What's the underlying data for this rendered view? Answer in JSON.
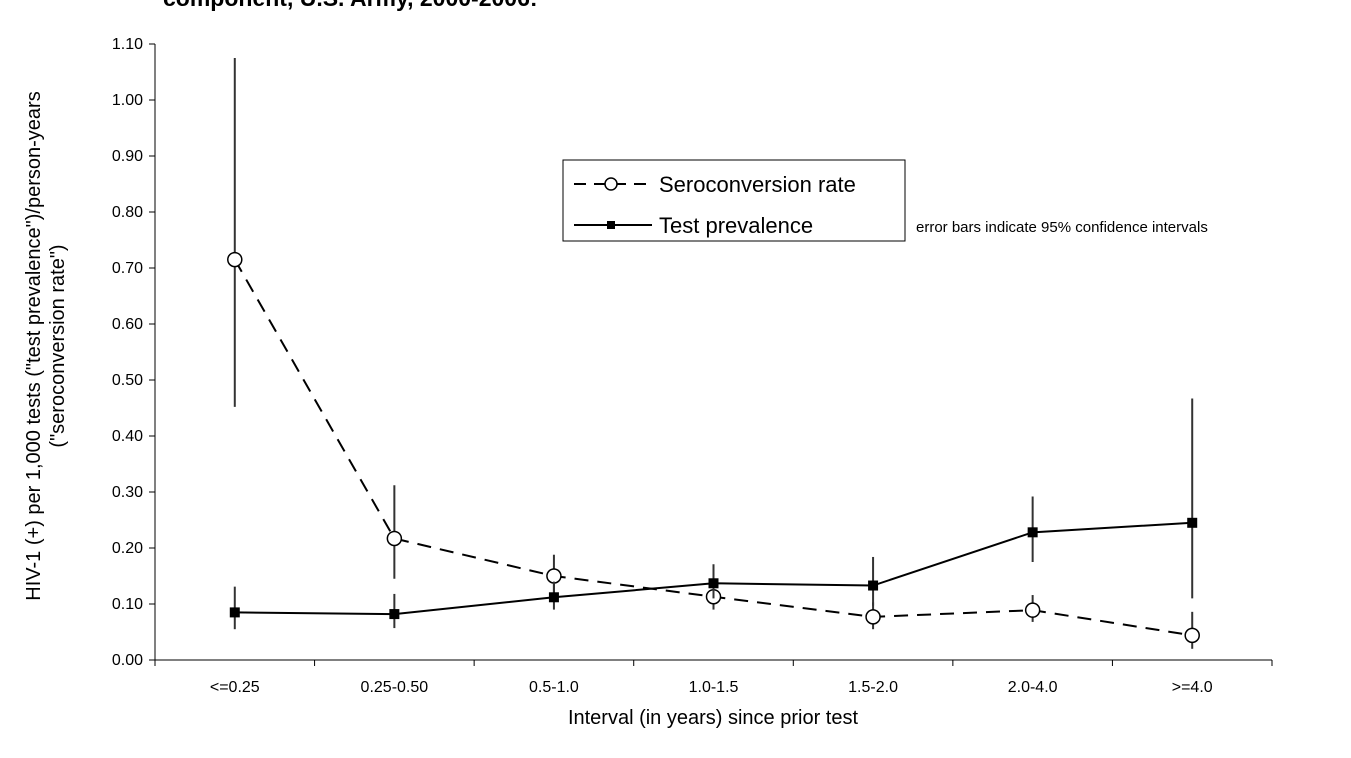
{
  "chart_data": {
    "type": "line",
    "title": "component, U.S. Army, 2000-2006:",
    "xlabel": "Interval (in years) since prior test",
    "ylabel_line1": "HIV-1 (+) per 1,000 tests (\"test prevalence\")/person-years",
    "ylabel_line2": "(\"seroconversion rate\")",
    "categories": [
      "<=0.25",
      "0.25-0.50",
      "0.5-1.0",
      "1.0-1.5",
      "1.5-2.0",
      "2.0-4.0",
      ">=4.0"
    ],
    "ylim": [
      0,
      1.1
    ],
    "yticks": [
      "0.00",
      "0.10",
      "0.20",
      "0.30",
      "0.40",
      "0.50",
      "0.60",
      "0.70",
      "0.80",
      "0.90",
      "1.00",
      "1.10"
    ],
    "grid": false,
    "legend_position": "upper-center",
    "note": "error bars indicate 95% confidence intervals",
    "series": [
      {
        "name": "Seroconversion rate",
        "line_style": "dashed",
        "marker": "open-circle",
        "color": "#000000",
        "values": [
          0.715,
          0.217,
          0.15,
          0.113,
          0.077,
          0.089,
          0.044
        ],
        "ci_low": [
          0.452,
          0.145,
          0.117,
          0.09,
          0.055,
          0.068,
          0.02
        ],
        "ci_high": [
          1.075,
          0.312,
          0.188,
          0.146,
          0.103,
          0.116,
          0.086
        ]
      },
      {
        "name": "Test prevalence",
        "line_style": "solid",
        "marker": "filled-square",
        "color": "#000000",
        "values": [
          0.085,
          0.082,
          0.112,
          0.137,
          0.133,
          0.228,
          0.245
        ],
        "ci_low": [
          0.055,
          0.057,
          0.09,
          0.11,
          0.097,
          0.175,
          0.11
        ],
        "ci_high": [
          0.131,
          0.118,
          0.14,
          0.171,
          0.184,
          0.292,
          0.467
        ]
      }
    ]
  }
}
